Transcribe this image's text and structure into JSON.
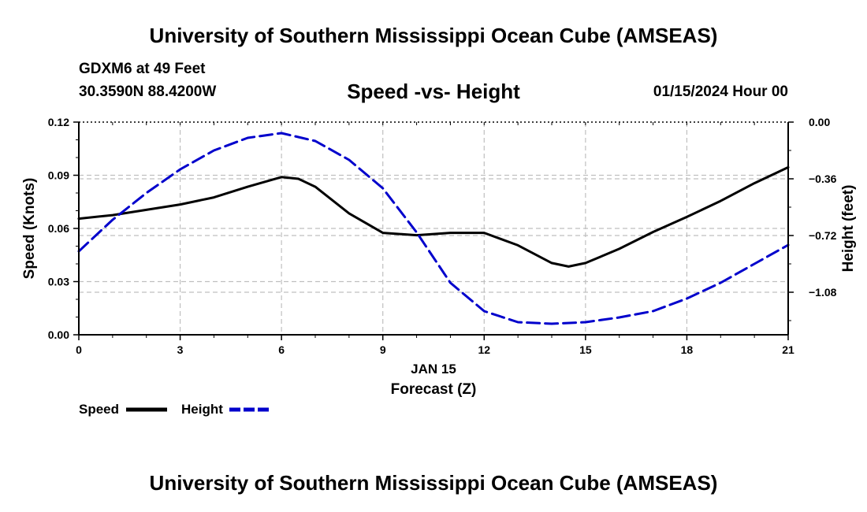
{
  "header": {
    "title": "University of Southern Mississippi Ocean Cube (AMSEAS)",
    "station": "GDXM6 at 49 Feet",
    "coordinates": "30.3590N  88.4200W",
    "subtitle": "Speed -vs- Height",
    "datetime": "01/15/2024 Hour 00"
  },
  "footer": {
    "title": "University of Southern Mississippi Ocean Cube (AMSEAS)"
  },
  "chart_data": {
    "type": "line",
    "title": "Speed -vs- Height",
    "xlabel": "Forecast (Z)",
    "xlabel_date": "JAN 15",
    "ylabel": "Speed (Knots)",
    "y2label": "Height (feet)",
    "xlim": [
      0,
      21
    ],
    "ylim": [
      0,
      0.12
    ],
    "y2lim": [
      -1.35,
      0.0
    ],
    "x_ticks": [
      0,
      3,
      6,
      9,
      12,
      15,
      18,
      21
    ],
    "x_tick_labels": [
      "0",
      "3",
      "6",
      "9",
      "12",
      "15",
      "18",
      "21"
    ],
    "y_ticks": [
      0,
      0.03,
      0.06,
      0.09,
      0.12
    ],
    "y_tick_labels": [
      "0.00",
      "0.03",
      "0.06",
      "0.09",
      "0.12"
    ],
    "y2_ticks": [
      0.0,
      -0.36,
      -0.72,
      -1.08
    ],
    "y2_tick_labels": [
      "0.00",
      "−0.36",
      "−0.72",
      "−1.08"
    ],
    "grid": true,
    "legend": "bottom-left",
    "series": [
      {
        "name": "Speed",
        "axis": "left",
        "color": "#000000",
        "style": "solid",
        "x": [
          0,
          1,
          2,
          3,
          4,
          5,
          6,
          6.5,
          7,
          8,
          9,
          10,
          11,
          12,
          13,
          14,
          14.5,
          15,
          16,
          17,
          18,
          19,
          20,
          21
        ],
        "values": [
          0.0655,
          0.0675,
          0.0705,
          0.0735,
          0.0775,
          0.0835,
          0.089,
          0.088,
          0.0835,
          0.0685,
          0.0575,
          0.0562,
          0.0575,
          0.0575,
          0.0505,
          0.0405,
          0.0385,
          0.0405,
          0.0485,
          0.058,
          0.0665,
          0.0755,
          0.0855,
          0.0945
        ]
      },
      {
        "name": "Height",
        "axis": "right",
        "color": "#0000cc",
        "style": "dashed",
        "x": [
          0,
          1,
          2,
          3,
          4,
          5,
          6,
          7,
          8,
          9,
          10,
          11,
          12,
          13,
          14,
          15,
          16,
          17,
          18,
          19,
          20,
          21
        ],
        "values": [
          -0.82,
          -0.62,
          -0.45,
          -0.3,
          -0.18,
          -0.1,
          -0.07,
          -0.12,
          -0.24,
          -0.42,
          -0.7,
          -1.02,
          -1.2,
          -1.27,
          -1.28,
          -1.27,
          -1.24,
          -1.2,
          -1.12,
          -1.02,
          -0.9,
          -0.78
        ]
      }
    ]
  }
}
